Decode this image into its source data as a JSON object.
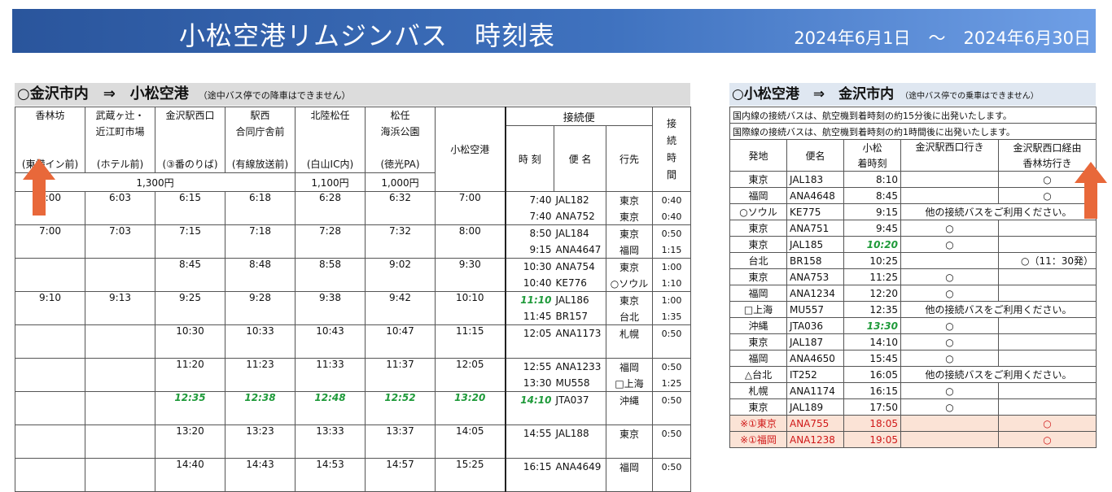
{
  "banner": {
    "title": "小松空港リムジンバス　時刻表",
    "period_start": "2024年6月1日",
    "period_sep": "〜",
    "period_end": "2024年6月30日"
  },
  "left": {
    "heading": "○金沢市内　⇒　小松空港",
    "note": "（途中バス停での降車はできません）",
    "stops": [
      {
        "name": "香林坊",
        "sub": "(東横イン前)"
      },
      {
        "name": "武蔵ヶ辻・近江町市場",
        "line1": "武蔵ヶ辻・",
        "line2": "近江町市場",
        "sub": "(ホテル前)"
      },
      {
        "name": "金沢駅西口",
        "sub": "(③番のりば)"
      },
      {
        "name": "駅西合同庁舎前",
        "line1": "駅西",
        "line2": "合同庁舎前",
        "sub": "(有線放送前)"
      },
      {
        "name": "北陸松任",
        "sub": "(白山IC内)"
      },
      {
        "name": "松任海浜公園",
        "line1": "松任",
        "line2": "海浜公園",
        "sub": "(徳光PA)"
      }
    ],
    "airport": "小松空港",
    "conn_header": "接続便",
    "conn_cols": {
      "time": "時 刻",
      "flight": "便 名",
      "dest": "行先"
    },
    "interval_header": [
      "接",
      "続",
      "時",
      "間"
    ],
    "fares": {
      "f1": "1,300円",
      "f2": "1,100円",
      "f3": "1,000円"
    },
    "trips": [
      {
        "times": [
          "6:00",
          "6:03",
          "6:15",
          "6:18",
          "6:28",
          "6:32",
          "7:00"
        ],
        "green": false,
        "flights": [
          {
            "time": "7:40",
            "flight": "JAL182",
            "dest": "東京",
            "gap": "0:40"
          },
          {
            "time": "7:40",
            "flight": "ANA752",
            "dest": "東京",
            "gap": "0:40"
          }
        ]
      },
      {
        "times": [
          "7:00",
          "7:03",
          "7:15",
          "7:18",
          "7:28",
          "7:32",
          "8:00"
        ],
        "green": false,
        "flights": [
          {
            "time": "8:50",
            "flight": "JAL184",
            "dest": "東京",
            "gap": "0:50"
          },
          {
            "time": "9:15",
            "flight": "ANA4647",
            "dest": "福岡",
            "gap": "1:15"
          }
        ]
      },
      {
        "times": [
          "",
          "",
          "8:45",
          "8:48",
          "8:58",
          "9:02",
          "9:30"
        ],
        "green": false,
        "flights": [
          {
            "time": "10:30",
            "flight": "ANA754",
            "dest": "東京",
            "gap": "1:00"
          },
          {
            "time": "10:40",
            "flight": "KE776",
            "dest": "○ソウル",
            "gap": "1:10"
          }
        ]
      },
      {
        "times": [
          "9:10",
          "9:13",
          "9:25",
          "9:28",
          "9:38",
          "9:42",
          "10:10"
        ],
        "green": false,
        "flights": [
          {
            "time": "11:10",
            "flight": "JAL186",
            "dest": "東京",
            "gap": "1:00",
            "green": true
          },
          {
            "time": "11:45",
            "flight": "BR157",
            "dest": "台北",
            "gap": "1:35"
          }
        ]
      },
      {
        "times": [
          "",
          "",
          "10:30",
          "10:33",
          "10:43",
          "10:47",
          "11:15"
        ],
        "green": false,
        "flights": [
          {
            "time": "12:05",
            "flight": "ANA1173",
            "dest": "札幌",
            "gap": "0:50"
          },
          {
            "time": "",
            "flight": "",
            "dest": "",
            "gap": ""
          }
        ]
      },
      {
        "times": [
          "",
          "",
          "11:20",
          "11:23",
          "11:33",
          "11:37",
          "12:05"
        ],
        "green": false,
        "flights": [
          {
            "time": "12:55",
            "flight": "ANA1233",
            "dest": "福岡",
            "gap": "0:50"
          },
          {
            "time": "13:30",
            "flight": "MU558",
            "dest": "□上海",
            "gap": "1:25"
          }
        ]
      },
      {
        "times": [
          "",
          "",
          "12:35",
          "12:38",
          "12:48",
          "12:52",
          "13:20"
        ],
        "green": true,
        "flights": [
          {
            "time": "14:10",
            "flight": "JTA037",
            "dest": "沖縄",
            "gap": "0:50",
            "green": true
          },
          {
            "time": "",
            "flight": "",
            "dest": "",
            "gap": ""
          }
        ]
      },
      {
        "times": [
          "",
          "",
          "13:20",
          "13:23",
          "13:33",
          "13:37",
          "14:05"
        ],
        "green": false,
        "flights": [
          {
            "time": "14:55",
            "flight": "JAL188",
            "dest": "東京",
            "gap": "0:50"
          },
          {
            "time": "",
            "flight": "",
            "dest": "",
            "gap": ""
          }
        ]
      },
      {
        "times": [
          "",
          "",
          "14:40",
          "14:43",
          "14:53",
          "14:57",
          "15:25"
        ],
        "green": false,
        "flights": [
          {
            "time": "16:15",
            "flight": "ANA4649",
            "dest": "福岡",
            "gap": "0:50"
          },
          {
            "time": "",
            "flight": "",
            "dest": "",
            "gap": ""
          }
        ]
      }
    ]
  },
  "right": {
    "heading": "○小松空港　⇒　金沢市内",
    "note": "（途中バス停での乗車はできません）",
    "info1": "国内線の接続バスは、航空機到着時刻の約15分後に出発いたします。",
    "info2": "国際線の接続バスは、航空機到着時刻の約1時間後に出発いたします。",
    "cols": {
      "origin": "発地",
      "flight": "便名",
      "arr1": "小松",
      "arr2": "着時刻",
      "dest1": "金沢駅西口行き",
      "dest2a": "金沢駅西口経由",
      "dest2b": "香林坊行き"
    },
    "rows": [
      {
        "origin": "東京",
        "flight": "JAL183",
        "time": "8:10",
        "a": "",
        "b": "○"
      },
      {
        "origin": "福岡",
        "flight": "ANA4648",
        "time": "8:45",
        "a": "",
        "b": "○"
      },
      {
        "origin": "○ソウル",
        "flight": "KE775",
        "time": "9:15",
        "merged": "他の接続バスをご利用ください。"
      },
      {
        "origin": "東京",
        "flight": "ANA751",
        "time": "9:45",
        "a": "○",
        "b": ""
      },
      {
        "origin": "東京",
        "flight": "JAL185",
        "time": "10:20",
        "a": "○",
        "b": "",
        "green": true
      },
      {
        "origin": "台北",
        "flight": "BR158",
        "time": "10:25",
        "a": "",
        "b": "○（11：30発）"
      },
      {
        "origin": "東京",
        "flight": "ANA753",
        "time": "11:25",
        "a": "○",
        "b": ""
      },
      {
        "origin": "福岡",
        "flight": "ANA1234",
        "time": "12:20",
        "a": "○",
        "b": ""
      },
      {
        "origin": "□上海",
        "flight": "MU557",
        "time": "12:35",
        "merged": "他の接続バスをご利用ください。"
      },
      {
        "origin": "沖縄",
        "flight": "JTA036",
        "time": "13:30",
        "a": "○",
        "b": "",
        "green": true
      },
      {
        "origin": "東京",
        "flight": "JAL187",
        "time": "14:10",
        "a": "○",
        "b": ""
      },
      {
        "origin": "福岡",
        "flight": "ANA4650",
        "time": "15:45",
        "a": "○",
        "b": ""
      },
      {
        "origin": "△台北",
        "flight": "IT252",
        "time": "16:05",
        "merged": "他の接続バスをご利用ください。"
      },
      {
        "origin": "札幌",
        "flight": "ANA1174",
        "time": "16:15",
        "a": "○",
        "b": ""
      },
      {
        "origin": "東京",
        "flight": "JAL189",
        "time": "17:50",
        "a": "○",
        "b": ""
      },
      {
        "origin": "※①東京",
        "flight": "ANA755",
        "time": "18:05",
        "a": "",
        "b": "○",
        "red": true
      },
      {
        "origin": "※①福岡",
        "flight": "ANA1238",
        "time": "19:05",
        "a": "",
        "b": "○",
        "red": true
      }
    ]
  },
  "colors": {
    "banner_start": "#2a559c",
    "banner_end": "#6f9fe6",
    "arrow": "#e8683a",
    "green": "#1f9a3a",
    "red_text": "#d01818",
    "red_bg": "#fbe3d6"
  },
  "icons": {
    "arrow": "up-arrow-icon"
  }
}
